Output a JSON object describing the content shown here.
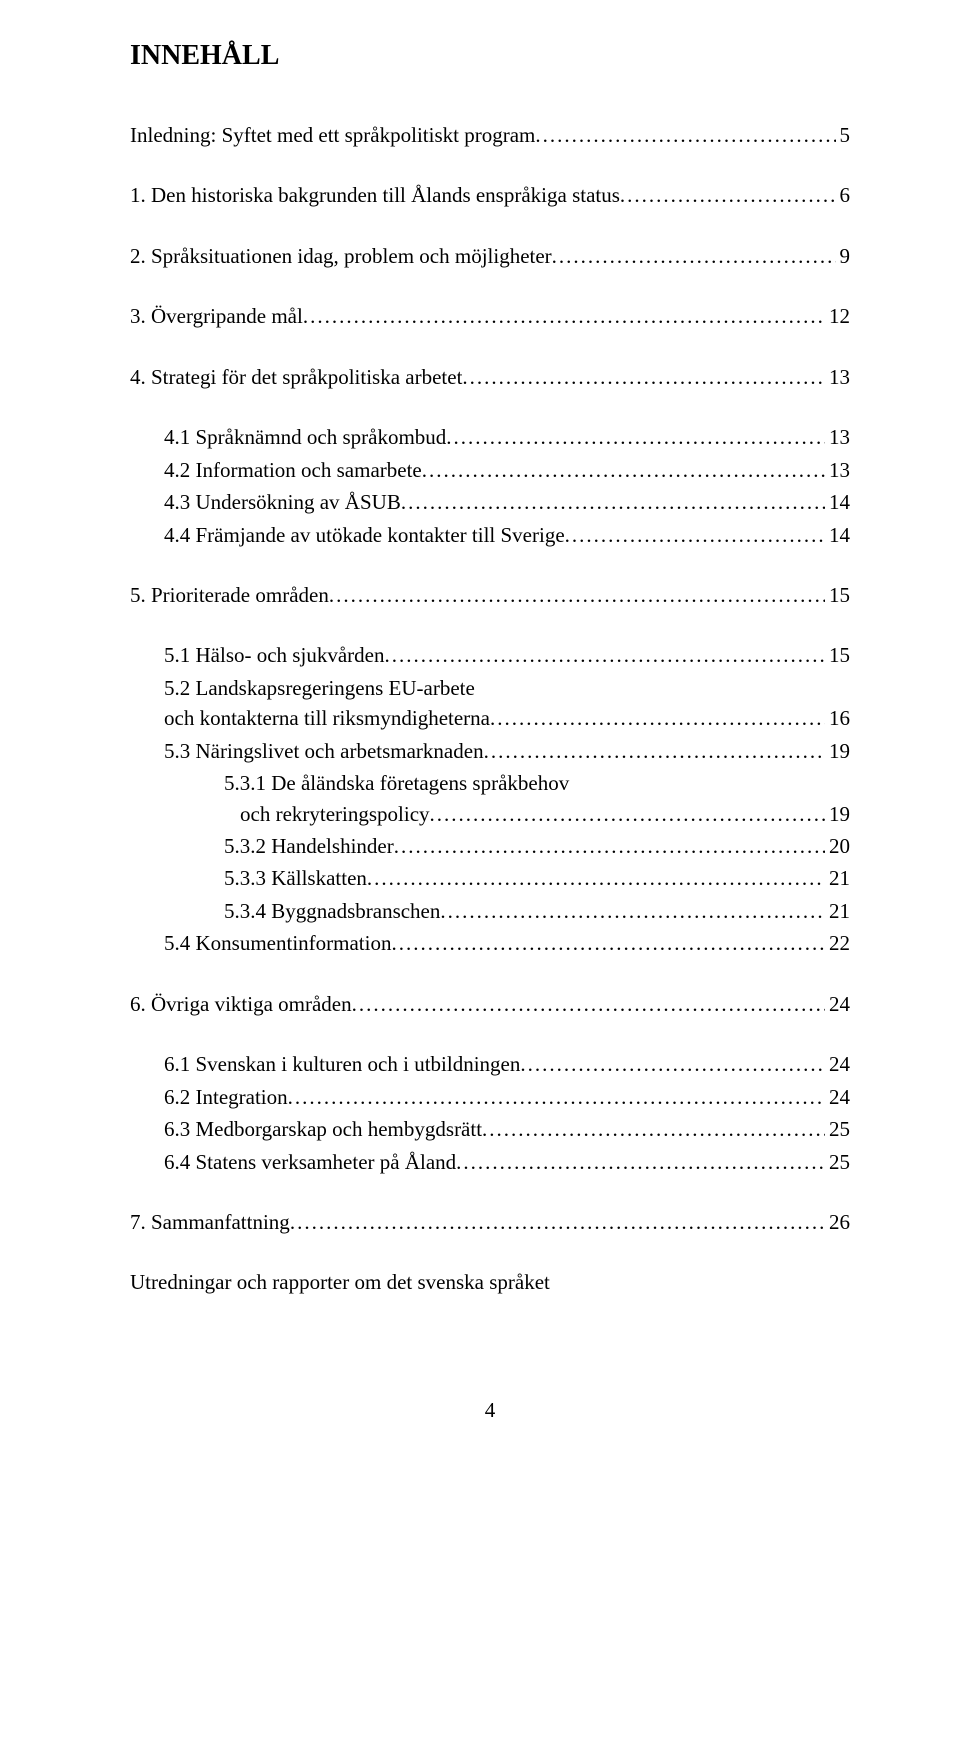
{
  "title": "INNEHÅLL",
  "lines": [
    {
      "label": "Inledning: Syftet med ett språkpolitiskt program",
      "page": "5",
      "indent": "indent-0"
    },
    {
      "gap": "gap-md"
    },
    {
      "label": "1.  Den historiska bakgrunden till Ålands enspråkiga status",
      "page": "6",
      "indent": "indent-0"
    },
    {
      "gap": "gap-md"
    },
    {
      "label": "2.  Språksituationen idag, problem och möjligheter",
      "page": "9",
      "indent": "indent-0"
    },
    {
      "gap": "gap-md"
    },
    {
      "label": "3.  Övergripande mål",
      "page": "12",
      "indent": "indent-0"
    },
    {
      "gap": "gap-md"
    },
    {
      "label": "4.  Strategi för det språkpolitiska arbetet",
      "page": "13",
      "indent": "indent-0"
    },
    {
      "gap": "gap-md"
    },
    {
      "label": "4.1 Språknämnd och språkombud",
      "page": "13",
      "indent": "indent-1"
    },
    {
      "label": "4.2 Information och samarbete",
      "page": "13",
      "indent": "indent-1"
    },
    {
      "label": "4.3 Undersökning av ÅSUB",
      "page": "14",
      "indent": "indent-1"
    },
    {
      "label": "4.4 Främjande av utökade kontakter till Sverige",
      "page": "14",
      "indent": "indent-1"
    },
    {
      "gap": "gap-md"
    },
    {
      "label": "5.  Prioriterade områden",
      "page": "15",
      "indent": "indent-0"
    },
    {
      "gap": "gap-md"
    },
    {
      "label": "5.1 Hälso- och sjukvården",
      "page": "15",
      "indent": "indent-1"
    },
    {
      "label": "5.2  Landskapsregeringens EU-arbete",
      "page": "",
      "indent": "indent-1",
      "noleader": true
    },
    {
      "label": "       och kontakterna till riksmyndigheterna",
      "page": "16",
      "indent": "indent-1"
    },
    {
      "label": "5.3 Näringslivet och arbetsmarknaden",
      "page": "19",
      "indent": "indent-1"
    },
    {
      "label": "5.3.1 De åländska företagens språkbehov",
      "page": "",
      "indent": "indent-2",
      "noleader": true
    },
    {
      "label": "och rekryteringspolicy",
      "page": "19",
      "indent": "indent-2b"
    },
    {
      "label": "5.3.2 Handelshinder",
      "page": "20",
      "indent": "indent-2"
    },
    {
      "label": "5.3.3 Källskatten",
      "page": "21",
      "indent": "indent-2"
    },
    {
      "label": "5.3.4 Byggnadsbranschen",
      "page": "21",
      "indent": "indent-2"
    },
    {
      "label": "5.4 Konsumentinformation",
      "page": "22",
      "indent": "indent-1"
    },
    {
      "gap": "gap-md"
    },
    {
      "label": "6.  Övriga viktiga områden",
      "page": "24",
      "indent": "indent-0"
    },
    {
      "gap": "gap-md"
    },
    {
      "label": "6.1 Svenskan i kulturen och i utbildningen",
      "page": "24",
      "indent": "indent-1"
    },
    {
      "label": "6.2 Integration",
      "page": "24",
      "indent": "indent-1"
    },
    {
      "label": "6.3 Medborgarskap och hembygdsrätt",
      "page": "25",
      "indent": "indent-1"
    },
    {
      "label": "6.4 Statens verksamheter på Åland",
      "page": "25",
      "indent": "indent-1"
    },
    {
      "gap": "gap-md"
    },
    {
      "label": "7.  Sammanfattning",
      "page": "26",
      "indent": "indent-0"
    },
    {
      "gap": "gap-md"
    },
    {
      "label": "Utredningar och rapporter om det svenska språket",
      "page": "",
      "indent": "indent-0",
      "noleader": true
    }
  ],
  "page_number": "4"
}
